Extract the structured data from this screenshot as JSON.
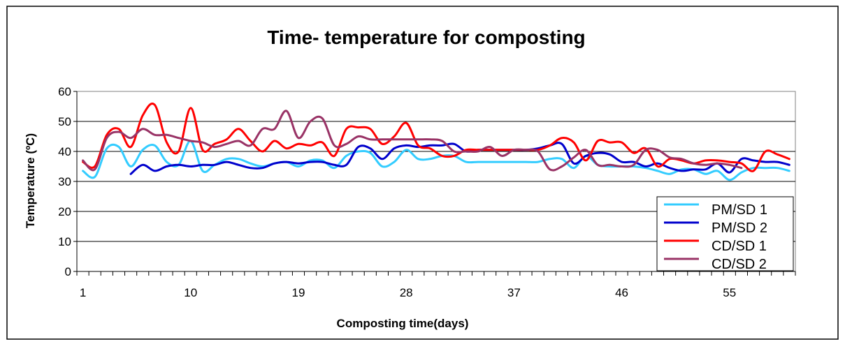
{
  "chart_data": {
    "type": "line",
    "title": "Time- temperature for composting",
    "xlabel": "Composting time(days)",
    "ylabel": "Temperature (ºC)",
    "xlim": [
      1,
      60
    ],
    "ylim": [
      0,
      60
    ],
    "yticks": [
      "0",
      "10",
      "20",
      "30",
      "40",
      "50",
      "60"
    ],
    "xticks": [
      {
        "x": 1,
        "label": "1"
      },
      {
        "x": 10,
        "label": "10"
      },
      {
        "x": 19,
        "label": "19"
      },
      {
        "x": 28,
        "label": "28"
      },
      {
        "x": 37,
        "label": "37"
      },
      {
        "x": 46,
        "label": "46"
      },
      {
        "x": 55,
        "label": "55"
      }
    ],
    "grid": "horizontal",
    "legend_position": "bottom-right",
    "series": [
      {
        "name": "PM/SD 1",
        "color": "#33CCFF",
        "x": [
          1,
          2,
          3,
          4,
          5,
          6,
          7,
          8,
          9,
          10,
          11,
          12,
          13,
          14,
          15,
          16,
          17,
          18,
          19,
          20,
          21,
          22,
          23,
          24,
          25,
          26,
          27,
          28,
          29,
          30,
          31,
          32,
          33,
          34,
          35,
          36,
          37,
          38,
          39,
          40,
          41,
          42,
          43,
          44,
          45,
          46,
          47,
          48,
          49,
          50,
          51,
          52,
          53,
          54,
          55,
          56,
          57,
          58,
          59,
          60
        ],
        "values": [
          33.5,
          31.5,
          41,
          41.5,
          35,
          40.5,
          42,
          36.5,
          35.5,
          43.5,
          33.5,
          35.5,
          37.5,
          37.5,
          36,
          35,
          36,
          36.5,
          35,
          37,
          37,
          34.5,
          38.5,
          40,
          39.5,
          35,
          36.5,
          40.5,
          37.5,
          37.5,
          38.5,
          38.5,
          36.5,
          36.5,
          36.5,
          36.5,
          36.5,
          36.5,
          36.5,
          37.5,
          37.5,
          34.5,
          38.5,
          35.5,
          35,
          35,
          35,
          34.5,
          33.5,
          32.5,
          34,
          34,
          32.5,
          33.5,
          30.5,
          33,
          34.5,
          34.5,
          34.5,
          33.5
        ]
      },
      {
        "name": "PM/SD 2",
        "color": "#0000CC",
        "x": [
          5,
          6,
          7,
          8,
          9,
          10,
          11,
          12,
          13,
          14,
          15,
          16,
          17,
          18,
          19,
          20,
          21,
          22,
          23,
          24,
          25,
          26,
          27,
          28,
          29,
          30,
          31,
          32,
          33,
          34,
          35,
          36,
          37,
          38,
          39,
          40,
          41,
          42,
          43,
          44,
          45,
          46,
          47,
          48,
          49,
          50,
          51,
          52,
          53,
          54,
          55,
          56,
          57,
          58,
          59,
          60
        ],
        "values": [
          32.5,
          35.5,
          33.5,
          35,
          35.5,
          35,
          35.5,
          35.5,
          36.5,
          35.5,
          34.5,
          34.5,
          36,
          36.5,
          36,
          36.5,
          36.5,
          35.5,
          35.5,
          41.5,
          41,
          37.5,
          41,
          42,
          41.5,
          42,
          42,
          42.5,
          40,
          40.5,
          40.5,
          40.5,
          40.5,
          40.5,
          41,
          42,
          42.5,
          36,
          38.5,
          39.5,
          39,
          36.5,
          36.5,
          35,
          36,
          34.5,
          33.5,
          34,
          34,
          36,
          33,
          37.5,
          37,
          36.5,
          36.5,
          35.5
        ]
      },
      {
        "name": "CD/SD 1",
        "color": "#FF0000",
        "x": [
          1,
          2,
          3,
          4,
          5,
          6,
          7,
          8,
          9,
          10,
          11,
          12,
          13,
          14,
          15,
          16,
          17,
          18,
          19,
          20,
          21,
          22,
          23,
          24,
          25,
          26,
          27,
          28,
          29,
          30,
          31,
          32,
          33,
          34,
          35,
          36,
          37,
          38,
          39,
          40,
          41,
          42,
          43,
          44,
          45,
          46,
          47,
          48,
          49,
          50,
          51,
          52,
          53,
          54,
          55,
          56,
          57,
          58,
          59,
          60
        ],
        "values": [
          36.5,
          35,
          45.5,
          47.5,
          41.5,
          52,
          55.5,
          43,
          40,
          54.5,
          40.5,
          42.5,
          44,
          47.5,
          43.5,
          40,
          43.5,
          41,
          42.5,
          42,
          43,
          38.5,
          47.5,
          48,
          47.5,
          42.5,
          45,
          49.5,
          42,
          41,
          38.5,
          38.5,
          40.5,
          40.5,
          40.5,
          40.5,
          40.5,
          40.5,
          40.5,
          42,
          44.5,
          43,
          37,
          43.5,
          43,
          43,
          39.5,
          41,
          35,
          37.5,
          37,
          36,
          37,
          37,
          36.5,
          36,
          33.5,
          40,
          39,
          37.5
        ]
      },
      {
        "name": "CD/SD 2",
        "color": "#993366",
        "x": [
          1,
          2,
          3,
          4,
          5,
          6,
          7,
          8,
          9,
          10,
          11,
          12,
          13,
          14,
          15,
          16,
          17,
          18,
          19,
          20,
          21,
          22,
          23,
          24,
          25,
          26,
          27,
          28,
          29,
          30,
          31,
          32,
          33,
          34,
          35,
          36,
          37,
          38,
          39,
          40,
          41,
          42,
          43,
          44,
          45,
          46,
          47,
          48,
          49,
          50,
          51,
          52,
          53,
          54,
          55,
          56
        ],
        "values": [
          37,
          34,
          44.5,
          46.5,
          44.5,
          47.5,
          45.5,
          45.5,
          44.5,
          43.5,
          43,
          41.5,
          42.5,
          43.5,
          42,
          47.5,
          47.5,
          53.5,
          44.5,
          50,
          51,
          42,
          42.5,
          45,
          44,
          44,
          44,
          44,
          44,
          44,
          43.5,
          40,
          40,
          40,
          41.5,
          38.5,
          40.5,
          40.5,
          40,
          34,
          35,
          38,
          40.5,
          35.5,
          35.5,
          35,
          35.5,
          40.5,
          40.5,
          38,
          37.5,
          36,
          35.5,
          36,
          35.5,
          34.5
        ]
      }
    ]
  }
}
